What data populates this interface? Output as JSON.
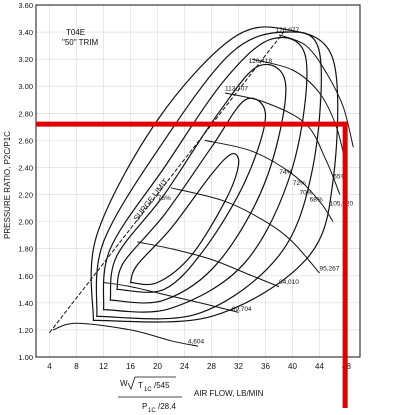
{
  "chart_data": {
    "type": "line",
    "title": "T04E",
    "subtitle": "\"50\" TRIM",
    "xlabel": "AIR FLOW, LB/MIN",
    "ylabel": "PRESSURE RATIO, P2C/P1C",
    "xlabel_formula": {
      "w": "W",
      "t_ratio": "T",
      "t_sub": "1C",
      "t_den": "/545",
      "p": "P",
      "p_sub": "1C",
      "p_den": "/28.4"
    },
    "xlim": [
      2,
      50
    ],
    "ylim": [
      1.0,
      3.6
    ],
    "x_ticks": [
      "4",
      "8",
      "12",
      "16",
      "20",
      "24",
      "28",
      "32",
      "36",
      "40",
      "44",
      "48"
    ],
    "y_ticks": [
      "1.00",
      "1.20",
      "1.40",
      "1.60",
      "1.80",
      "2.00",
      "2.20",
      "2.40",
      "2.60",
      "2.80",
      "3.00",
      "3.20",
      "3.40",
      "3.60"
    ],
    "grid": true,
    "surge_limit_label": "SURGE LIMIT",
    "surge_line": [
      [
        4.0,
        1.18
      ],
      [
        39.0,
        3.42
      ]
    ],
    "speed_lines": [
      {
        "label": "4,604",
        "points": [
          [
            4.5,
            1.2
          ],
          [
            8,
            1.25
          ],
          [
            16,
            1.2
          ],
          [
            22,
            1.12
          ],
          [
            26,
            1.08
          ]
        ]
      },
      {
        "label": "69,704",
        "points": [
          [
            12,
            1.55
          ],
          [
            16,
            1.52
          ],
          [
            22,
            1.45
          ],
          [
            28,
            1.38
          ],
          [
            32,
            1.33
          ]
        ]
      },
      {
        "label": "84,010",
        "points": [
          [
            17,
            1.85
          ],
          [
            22,
            1.8
          ],
          [
            28,
            1.72
          ],
          [
            34,
            1.6
          ],
          [
            38,
            1.52
          ]
        ]
      },
      {
        "label": "95,267",
        "points": [
          [
            22,
            2.25
          ],
          [
            30,
            2.15
          ],
          [
            36,
            2.0
          ],
          [
            40,
            1.85
          ],
          [
            44,
            1.62
          ]
        ]
      },
      {
        "label": "105,020",
        "points": [
          [
            27,
            2.6
          ],
          [
            34,
            2.52
          ],
          [
            40,
            2.35
          ],
          [
            44,
            2.15
          ],
          [
            46,
            2.0
          ]
        ]
      },
      {
        "label": "113,707",
        "points": [
          [
            30,
            2.95
          ],
          [
            36,
            2.88
          ],
          [
            42,
            2.72
          ],
          [
            45,
            2.45
          ],
          [
            47,
            2.2
          ]
        ]
      },
      {
        "label": "120,418",
        "points": [
          [
            34,
            3.2
          ],
          [
            40,
            3.12
          ],
          [
            44,
            2.95
          ],
          [
            46.5,
            2.7
          ],
          [
            48,
            2.4
          ]
        ]
      },
      {
        "label": "126,077",
        "points": [
          [
            38,
            3.38
          ],
          [
            42,
            3.3
          ],
          [
            45,
            3.1
          ],
          [
            47.5,
            2.85
          ],
          [
            49,
            2.55
          ]
        ]
      }
    ],
    "efficiency_islands": [
      {
        "label": "76%",
        "points": [
          [
            16,
            1.55
          ],
          [
            17,
            1.68
          ],
          [
            22,
            1.95
          ],
          [
            28,
            2.35
          ],
          [
            31,
            2.5
          ],
          [
            32,
            2.42
          ],
          [
            30,
            2.15
          ],
          [
            25,
            1.75
          ],
          [
            20,
            1.55
          ],
          [
            16,
            1.55
          ]
        ]
      },
      {
        "label": "74%",
        "points": [
          [
            14,
            1.5
          ],
          [
            15,
            1.7
          ],
          [
            21,
            2.05
          ],
          [
            28,
            2.55
          ],
          [
            33,
            2.9
          ],
          [
            36,
            2.78
          ],
          [
            33,
            2.3
          ],
          [
            27,
            1.8
          ],
          [
            21,
            1.5
          ],
          [
            14,
            1.5
          ]
        ]
      },
      {
        "label": "72%",
        "points": [
          [
            13,
            1.42
          ],
          [
            14,
            1.75
          ],
          [
            21,
            2.2
          ],
          [
            29,
            2.8
          ],
          [
            35,
            3.15
          ],
          [
            39,
            3.0
          ],
          [
            36,
            2.3
          ],
          [
            29,
            1.7
          ],
          [
            21,
            1.42
          ],
          [
            13,
            1.42
          ]
        ]
      },
      {
        "label": "70%",
        "points": [
          [
            12,
            1.35
          ],
          [
            13,
            1.8
          ],
          [
            21,
            2.4
          ],
          [
            30,
            3.05
          ],
          [
            37,
            3.35
          ],
          [
            42,
            3.2
          ],
          [
            40,
            2.4
          ],
          [
            33,
            1.7
          ],
          [
            22,
            1.36
          ],
          [
            12,
            1.35
          ]
        ]
      },
      {
        "label": "68%",
        "points": [
          [
            11,
            1.3
          ],
          [
            12,
            1.85
          ],
          [
            21,
            2.6
          ],
          [
            31,
            3.25
          ],
          [
            39,
            3.4
          ],
          [
            44,
            3.25
          ],
          [
            43,
            2.4
          ],
          [
            38,
            1.75
          ],
          [
            26,
            1.32
          ],
          [
            11,
            1.3
          ]
        ]
      },
      {
        "label": "65%",
        "points": [
          [
            10.5,
            1.27
          ],
          [
            11,
            1.9
          ],
          [
            20,
            2.75
          ],
          [
            31,
            3.35
          ],
          [
            39,
            3.42
          ],
          [
            46,
            3.2
          ],
          [
            46,
            2.3
          ],
          [
            42,
            1.72
          ],
          [
            28,
            1.3
          ],
          [
            10.5,
            1.27
          ]
        ]
      }
    ],
    "island_label_positions": {
      "76%": [
        21,
        2.16
      ],
      "74%": [
        39,
        2.35
      ],
      "72%": [
        41,
        2.27
      ],
      "70%": [
        42,
        2.2
      ],
      "68%": [
        43.5,
        2.15
      ],
      "65%": [
        47,
        2.32
      ]
    },
    "speed_label_positions": {
      "4,604": [
        24.5,
        1.1
      ],
      "69,704": [
        31,
        1.34
      ],
      "84,010": [
        38,
        1.54
      ],
      "95,267": [
        44,
        1.64
      ],
      "105,020": [
        45.5,
        2.12
      ],
      "113,707": [
        30,
        2.97
      ],
      "120,418": [
        33.5,
        3.17
      ],
      "126,077": [
        37.5,
        3.4
      ]
    },
    "operating_point": {
      "x": 47.8,
      "y": 2.72,
      "color": "#e00000"
    },
    "colors": {
      "lines": "#111111",
      "grid": "#d8d8d8",
      "highlight": "#e00000"
    }
  }
}
